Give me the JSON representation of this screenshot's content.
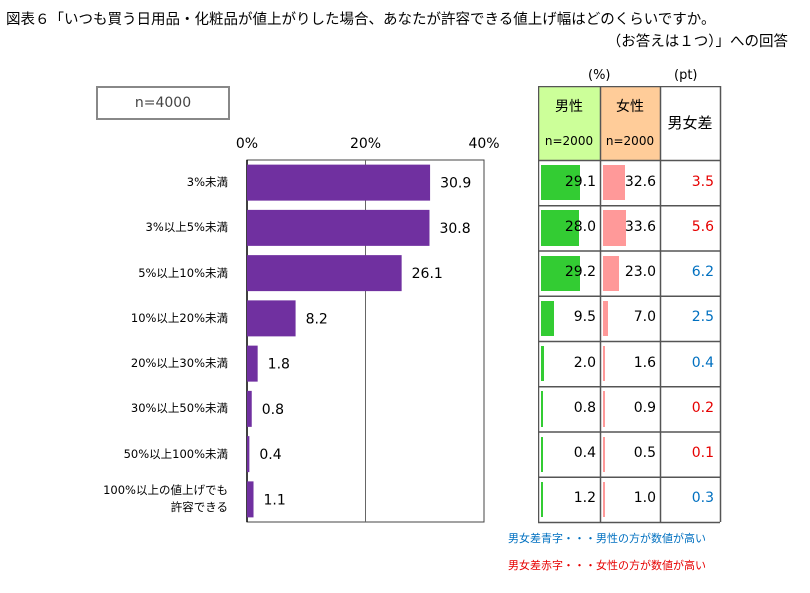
{
  "title": {
    "line1": "図表６「いつも買う日用品・化粧品が値上がりした場合、あなたが許容できる値上げ幅はどのくらいですか。",
    "line2": "（お答えは１つ）」への回答"
  },
  "sample_label": "n=4000",
  "units": {
    "percent": "(%)",
    "point": "(pt)"
  },
  "table": {
    "male_header": "男性",
    "female_header": "女性",
    "male_n": "n=2000",
    "female_n": "n=2000",
    "diff_header": "男女差"
  },
  "colors": {
    "bar": "#7030a0",
    "male_bar": "#33cc33",
    "female_bar": "#ff9999",
    "male_header_bg": "#ccff99",
    "female_header_bg": "#ffcc99",
    "diff_red": "#e60000",
    "diff_blue": "#0070c0"
  },
  "notes": {
    "blue": "男女差青字・・・男性の方が数値が高い",
    "red": "男女差赤字・・・女性の方が数値が高い"
  },
  "chart_data": {
    "type": "bar",
    "orientation": "horizontal",
    "title": "図表６",
    "x_ticks": [
      "0%",
      "20%",
      "40%"
    ],
    "xlim": [
      0,
      40
    ],
    "categories": [
      "3%未満",
      "3%以上5%未満",
      "5%以上10%未満",
      "10%以上20%未満",
      "20%以上30%未満",
      "30%以上50%未満",
      "50%以上100%未満",
      "100%以上の値上げでも\n許容できる"
    ],
    "values": [
      30.9,
      30.8,
      26.1,
      8.2,
      1.8,
      0.8,
      0.4,
      1.1
    ],
    "value_labels": [
      "30.9",
      "30.8",
      "26.1",
      "8.2",
      "1.8",
      "0.8",
      "0.4",
      "1.1"
    ],
    "male": [
      29.1,
      28.0,
      29.2,
      9.5,
      2.0,
      0.8,
      0.4,
      1.2
    ],
    "male_labels": [
      "29.1",
      "28.0",
      "29.2",
      "9.5",
      "2.0",
      "0.8",
      "0.4",
      "1.2"
    ],
    "female": [
      32.6,
      33.6,
      23.0,
      7.0,
      1.6,
      0.9,
      0.5,
      1.0
    ],
    "female_labels": [
      "32.6",
      "33.6",
      "23.0",
      "7.0",
      "1.6",
      "0.9",
      "0.5",
      "1.0"
    ],
    "diff_labels": [
      "3.5",
      "5.6",
      "6.2",
      "2.5",
      "0.4",
      "0.2",
      "0.1",
      "0.3"
    ],
    "diff_higher": [
      "female",
      "female",
      "male",
      "male",
      "male",
      "female",
      "female",
      "male"
    ]
  }
}
